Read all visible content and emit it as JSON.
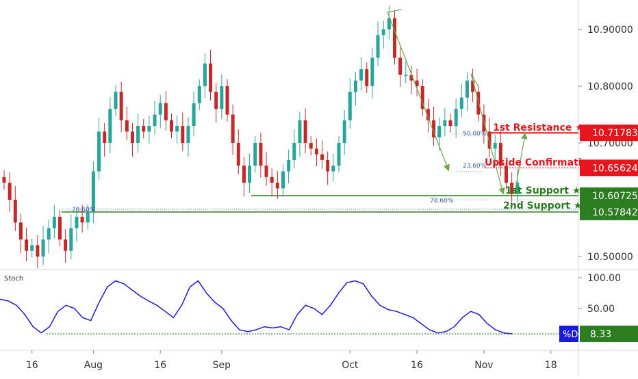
{
  "chart_data": [
    {
      "type": "candlestick",
      "title": "",
      "ylim": [
        10.48,
        10.935
      ],
      "y_ticks": [
        {
          "value": 10.9,
          "label": "10.90000"
        },
        {
          "value": 10.8,
          "label": "10.80000"
        },
        {
          "value": 10.7,
          "label": "10.70000"
        },
        {
          "value": 10.5,
          "label": "10.50000"
        }
      ],
      "x_ticks": [
        {
          "index": 5,
          "label": "16"
        },
        {
          "index": 16,
          "label": "Aug"
        },
        {
          "index": 28,
          "label": "16"
        },
        {
          "index": 39,
          "label": "Sep"
        },
        {
          "index": 62,
          "label": "Oct"
        },
        {
          "index": 74,
          "label": "16"
        },
        {
          "index": 86,
          "label": "Nov"
        },
        {
          "index": 98,
          "label": "18"
        }
      ],
      "series": [
        {
          "close": [
            10.63,
            10.6,
            10.56,
            10.53,
            10.51,
            10.52,
            10.5,
            10.53,
            10.55,
            10.57,
            10.53,
            10.51,
            10.55,
            10.57,
            10.56,
            10.58,
            10.65,
            10.72,
            10.7,
            10.76,
            10.79,
            10.74,
            10.72,
            10.7,
            10.73,
            10.72,
            10.73,
            10.75,
            10.77,
            10.74,
            10.72,
            10.73,
            10.7,
            10.73,
            10.77,
            10.8,
            10.84,
            10.79,
            10.76,
            10.8,
            10.75,
            10.7,
            10.66,
            10.63,
            10.66,
            10.7,
            10.66,
            10.64,
            10.63,
            10.62,
            10.65,
            10.67,
            10.7,
            10.74,
            10.7,
            10.69,
            10.68,
            10.67,
            10.65,
            10.66,
            10.7,
            10.74,
            10.79,
            10.81,
            10.83,
            10.8,
            10.85,
            10.89,
            10.9,
            10.92,
            10.85,
            10.82,
            10.82,
            10.81,
            10.8,
            10.76,
            10.74,
            10.71,
            10.73,
            10.74,
            10.73,
            10.76,
            10.78,
            10.81,
            10.79,
            10.75,
            10.72,
            10.69,
            10.7,
            10.66,
            10.63,
            10.61,
            10.63
          ]
        }
      ],
      "horizontal_levels": [
        {
          "name": "1st Resistance ★★",
          "value": "10.71783",
          "color": "#e8141c"
        },
        {
          "name": "Upside Confirmation",
          "value": "10.65624",
          "color": "#e8141c"
        },
        {
          "name": "1st Support ★★",
          "value": "10.60725",
          "color": "#2b7d1f"
        },
        {
          "name": "2nd Support ★★",
          "value": "10.57842",
          "color": "#2b7d1f"
        }
      ],
      "fib_labels": [
        "78.60%",
        "78.60%",
        "50.00%",
        "23.60%"
      ],
      "colors": {
        "up": "#26a69a",
        "down": "#c62828",
        "resistance": "#e8141c",
        "support": "#2b7d1f",
        "fib": "#3a5fb0",
        "arrow": "#6aa84f"
      }
    },
    {
      "type": "line",
      "title": "Stoch",
      "ylim": [
        0,
        100
      ],
      "y_ticks": [
        {
          "value": 100,
          "label": "100.00"
        },
        {
          "value": 50,
          "label": "50.00"
        }
      ],
      "series": [
        {
          "name": "%D",
          "values": [
            65,
            62,
            55,
            40,
            20,
            10,
            20,
            45,
            55,
            50,
            35,
            30,
            60,
            85,
            95,
            90,
            80,
            70,
            62,
            55,
            45,
            35,
            55,
            85,
            95,
            75,
            60,
            50,
            30,
            15,
            12,
            15,
            20,
            18,
            20,
            15,
            40,
            55,
            50,
            40,
            55,
            75,
            92,
            95,
            90,
            70,
            55,
            48,
            45,
            40,
            35,
            25,
            15,
            10,
            12,
            20,
            35,
            45,
            40,
            25,
            15,
            10,
            8.33
          ],
          "last_value": "8.33"
        }
      ],
      "dotted_level": 8.33,
      "line_color": "#1a1adb",
      "label_box_color": "#1a1adb",
      "value_box_color": "#2b7d1f"
    }
  ]
}
